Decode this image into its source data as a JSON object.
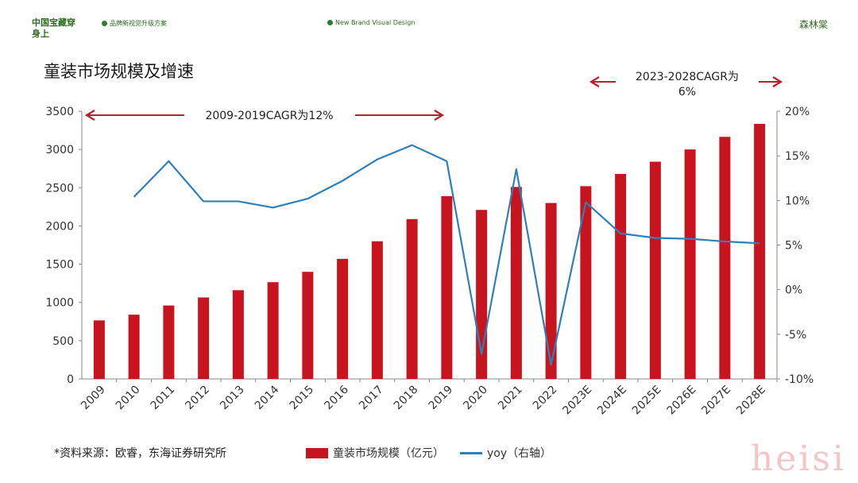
{
  "header": {
    "brand": "中国宝藏穿身上",
    "tag_left": "品牌新视觉升级方案",
    "tag_right": "New Brand Visual Design",
    "corner": "森林棠"
  },
  "title": "童装市场规模及增速",
  "annotations": {
    "left": "2009-2019CAGR为12%",
    "right_line1": "2023-2028CAGR为",
    "right_line2": "6%"
  },
  "footer": {
    "source": "*资料来源：欧睿，东海证券研究所",
    "legend_bar": "童装市场规模（亿元）",
    "legend_line": "yoy（右轴）"
  },
  "watermark": "heisi",
  "colors": {
    "bar": "#c8141f",
    "line": "#2f7fb8",
    "arrow": "#b5232a",
    "brand": "#2e6b1f"
  },
  "chart_data": {
    "type": "bar",
    "categories": [
      "2009",
      "2010",
      "2011",
      "2012",
      "2013",
      "2014",
      "2015",
      "2016",
      "2017",
      "2018",
      "2019",
      "2020",
      "2021",
      "2022",
      "2023E",
      "2024E",
      "2025E",
      "2026E",
      "2027E",
      "2028E"
    ],
    "series": [
      {
        "name": "童装市场规模（亿元）",
        "type": "bar",
        "axis": "left",
        "values": [
          765,
          840,
          960,
          1065,
          1160,
          1265,
          1400,
          1570,
          1800,
          2090,
          2390,
          2210,
          2510,
          2300,
          2520,
          2680,
          2840,
          3000,
          3165,
          3335
        ]
      },
      {
        "name": "yoy（右轴）",
        "type": "line",
        "axis": "right",
        "values": [
          null,
          10.4,
          14.4,
          9.9,
          9.9,
          9.2,
          10.2,
          12.2,
          14.6,
          16.2,
          14.4,
          -7.2,
          13.5,
          -8.4,
          9.8,
          6.3,
          5.8,
          5.7,
          5.4,
          5.2
        ]
      }
    ],
    "y_left": {
      "min": 0,
      "max": 3500,
      "ticks": [
        "0",
        "500",
        "1000",
        "1500",
        "2000",
        "2500",
        "3000",
        "3500"
      ]
    },
    "y_right": {
      "min": -10,
      "max": 20,
      "ticks": [
        "-10%",
        "-5%",
        "0%",
        "5%",
        "10%",
        "15%",
        "20%"
      ]
    },
    "grid": false,
    "legend_position": "bottom"
  }
}
